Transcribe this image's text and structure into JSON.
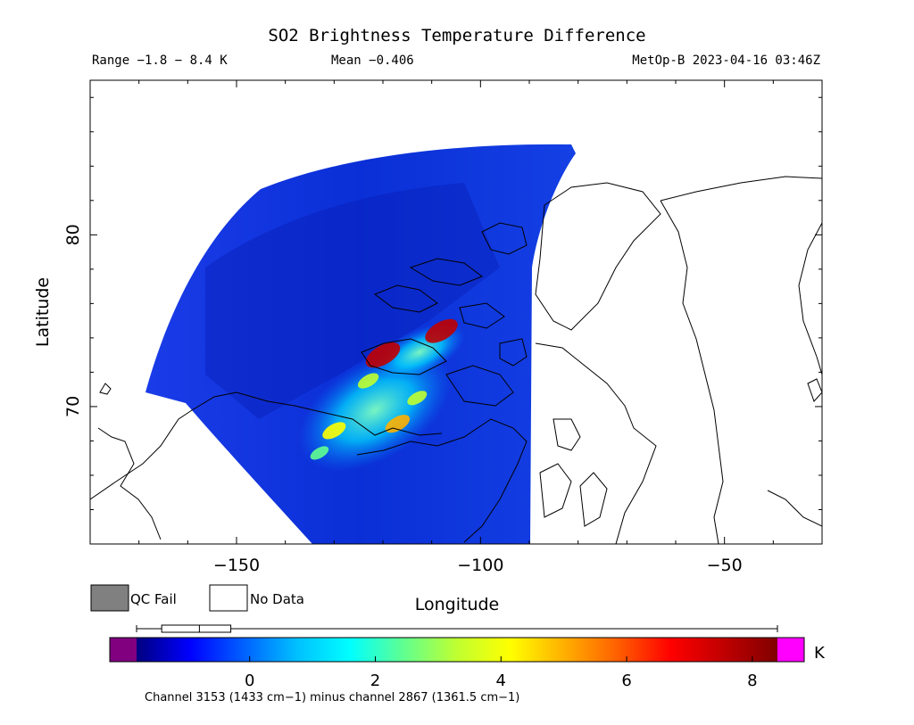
{
  "header": {
    "title": "SO2 Brightness Temperature Difference",
    "range_text": "Range −1.8 − 8.4 K",
    "mean_text": "Mean −0.406",
    "satellite_text": "MetOp-B 2023-04-16 03:46Z"
  },
  "chart_data": {
    "type": "heatmap",
    "title": "SO2 Brightness Temperature Difference",
    "xlabel": "Longitude",
    "ylabel": "Latitude",
    "xlim": [
      -180,
      -30
    ],
    "ylim": [
      62,
      89
    ],
    "x_ticks": [
      -150,
      -100,
      -50
    ],
    "x_tick_labels": [
      "−150",
      "−100",
      "−50"
    ],
    "y_ticks": [
      70,
      80
    ],
    "y_tick_labels": [
      "70",
      "80"
    ],
    "stats": {
      "min": -1.8,
      "max": 8.4,
      "mean": -0.406,
      "units": "K"
    },
    "colorbar": {
      "range": [
        -1.8,
        8.4
      ],
      "ticks": [
        0,
        2,
        4,
        6,
        8
      ],
      "tick_labels": [
        "0",
        "2",
        "4",
        "6",
        "8"
      ],
      "unit": "K",
      "colors": [
        "#000080",
        "#0000ff",
        "#0060ff",
        "#00c0ff",
        "#00ffff",
        "#60ff90",
        "#c0ff30",
        "#ffff00",
        "#ffb000",
        "#ff6000",
        "#ff0000",
        "#c00000",
        "#800000"
      ],
      "underflow_color": "#800080",
      "overflow_color": "#ff00ff"
    },
    "boxplot": {
      "min": -1.8,
      "q1": -1.4,
      "median": -0.8,
      "q3": -0.3,
      "max": 8.4
    },
    "hotspots": [
      {
        "lon": -120,
        "lat": 73.0,
        "value": 7.8
      },
      {
        "lon": -108,
        "lat": 74.4,
        "value": 7.2
      },
      {
        "lon": -117,
        "lat": 69.0,
        "value": 4.6
      },
      {
        "lon": -130,
        "lat": 68.6,
        "value": 4.2
      },
      {
        "lon": -123,
        "lat": 71.5,
        "value": 3.4
      },
      {
        "lon": -113,
        "lat": 70.5,
        "value": 3.0
      },
      {
        "lon": -133,
        "lat": 67.3,
        "value": 2.6
      }
    ]
  },
  "legend": {
    "qc_fail_label": "QC Fail",
    "qc_fail_color": "#808080",
    "no_data_label": "No Data",
    "no_data_color": "#ffffff"
  },
  "footer": {
    "channel_text": "Channel 3153 (1433 cm−1) minus channel 2867 (1361.5 cm−1)"
  }
}
